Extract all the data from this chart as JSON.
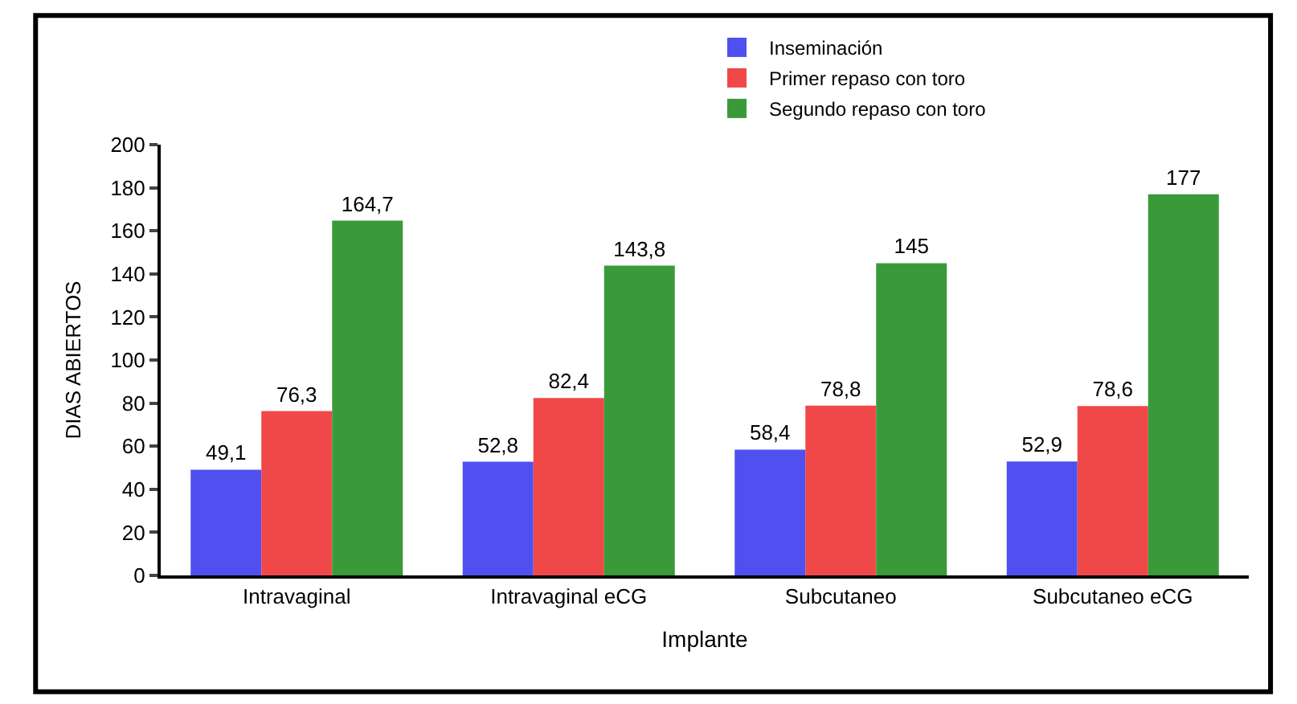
{
  "chart_data": {
    "type": "bar",
    "xlabel": "Implante",
    "ylabel": "DIAS ABIERTOS",
    "categories": [
      "Intravaginal",
      "Intravaginal eCG",
      "Subcutaneo",
      "Subcutaneo eCG"
    ],
    "series": [
      {
        "name": "Inseminación",
        "color": "#5050f0",
        "values": [
          49.1,
          52.8,
          58.4,
          52.9
        ],
        "value_labels": [
          "49,1",
          "52,8",
          "58,4",
          "52,9"
        ]
      },
      {
        "name": "Primer repaso con toro",
        "color": "#f04848",
        "values": [
          76.3,
          82.4,
          78.8,
          78.6
        ],
        "value_labels": [
          "76,3",
          "82,4",
          "78,8",
          "78,6"
        ]
      },
      {
        "name": "Segundo repaso con toro",
        "color": "#3a9a3a",
        "values": [
          164.7,
          143.8,
          145,
          177
        ],
        "value_labels": [
          "164,7",
          "143,8",
          "145",
          "177"
        ]
      }
    ],
    "ylim": [
      0,
      200
    ],
    "yticks": [
      0,
      20,
      40,
      60,
      80,
      100,
      120,
      140,
      160,
      180,
      200
    ],
    "legend": "top"
  }
}
